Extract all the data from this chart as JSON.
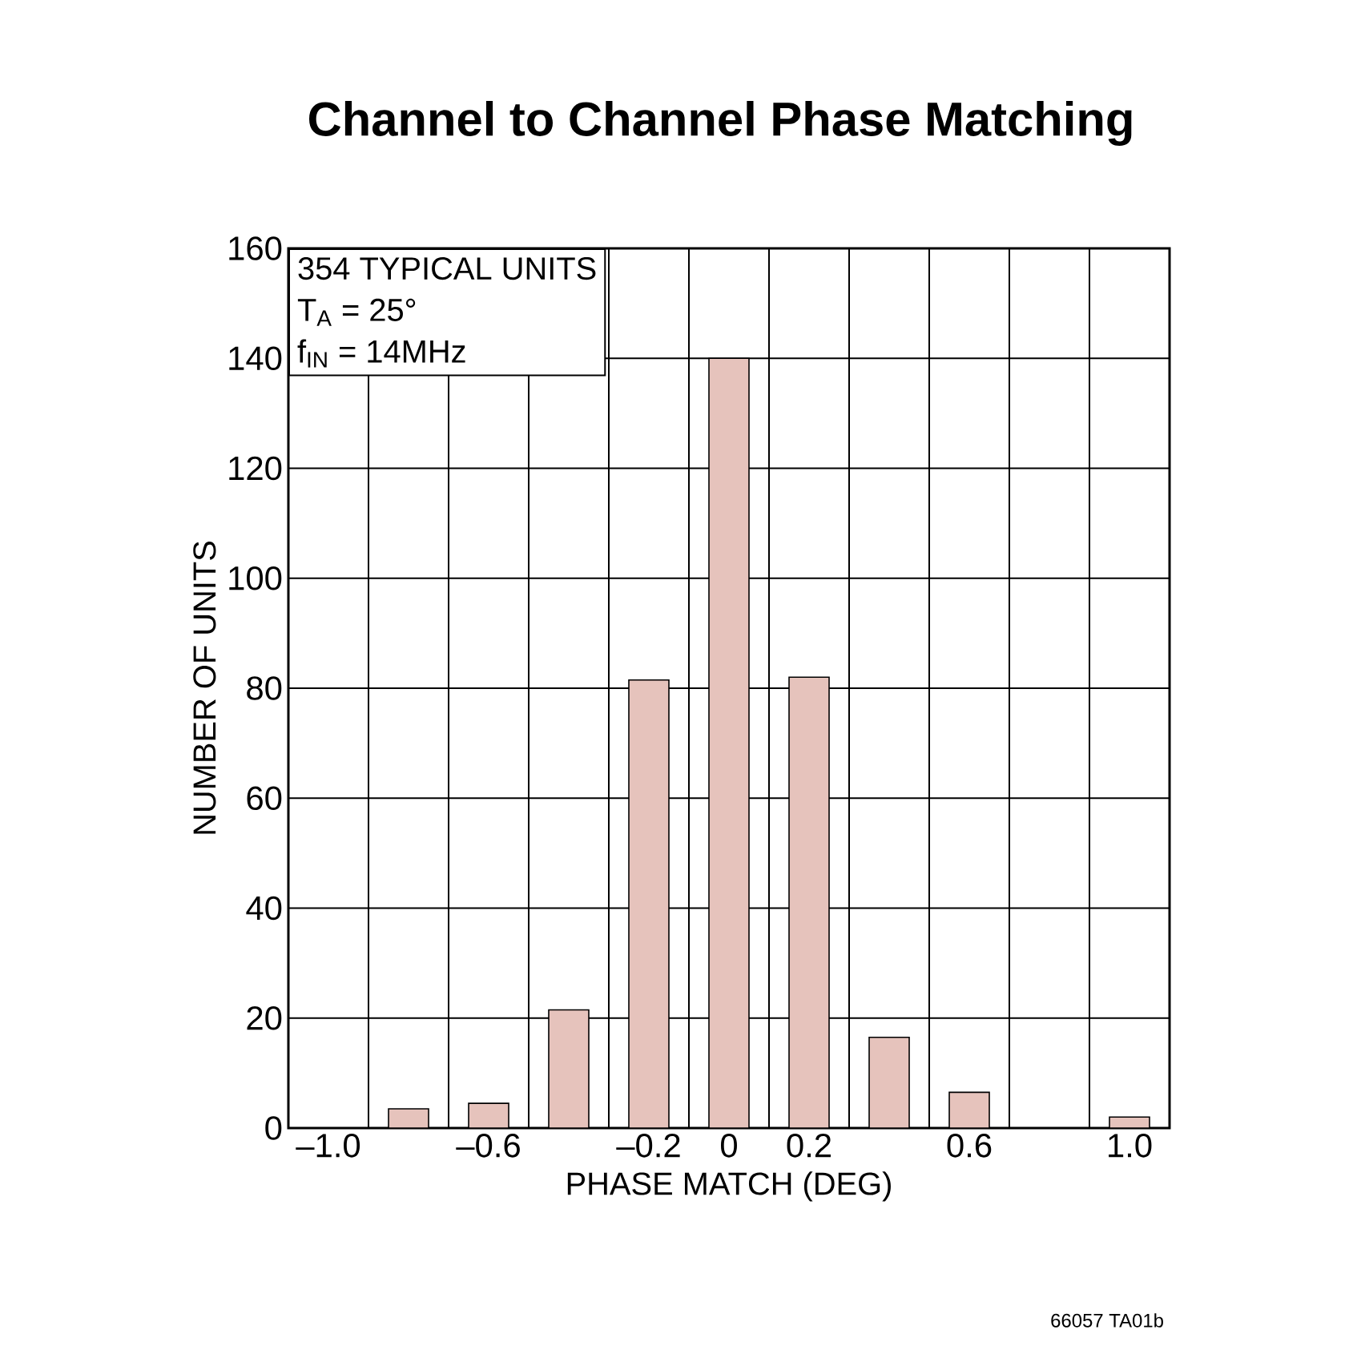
{
  "chart_data": {
    "type": "histogram",
    "title": "Channel to Channel Phase Matching",
    "xlabel": "PHASE MATCH (DEG)",
    "ylabel": "NUMBER OF UNITS",
    "bins": [
      -1.1,
      -0.9,
      -0.7,
      -0.5,
      -0.3,
      -0.1,
      0.1,
      0.3,
      0.5,
      0.7,
      0.9,
      1.1
    ],
    "values": [
      0,
      3.5,
      4.5,
      21.5,
      81.5,
      140,
      82,
      16.5,
      6.5,
      0,
      2
    ],
    "color": "#e6c3bc",
    "xlim": [
      -1.1,
      1.1
    ],
    "ylim": [
      0,
      160
    ],
    "xticks": [
      {
        "value": -1.0,
        "label": "–1.0"
      },
      {
        "value": -0.6,
        "label": "–0.6"
      },
      {
        "value": -0.2,
        "label": "–0.2"
      },
      {
        "value": 0,
        "label": "0"
      },
      {
        "value": 0.2,
        "label": "0.2"
      },
      {
        "value": 0.6,
        "label": "0.6"
      },
      {
        "value": 1.0,
        "label": "1.0"
      }
    ],
    "yticks": [
      0,
      20,
      40,
      60,
      80,
      100,
      120,
      140,
      160
    ],
    "grid": true,
    "annotations": [
      "354 TYPICAL UNITS",
      "T$_{A}$ = 25°",
      "f$_{IN}$ = 14MHz",
      "66057 TA01b"
    ]
  }
}
